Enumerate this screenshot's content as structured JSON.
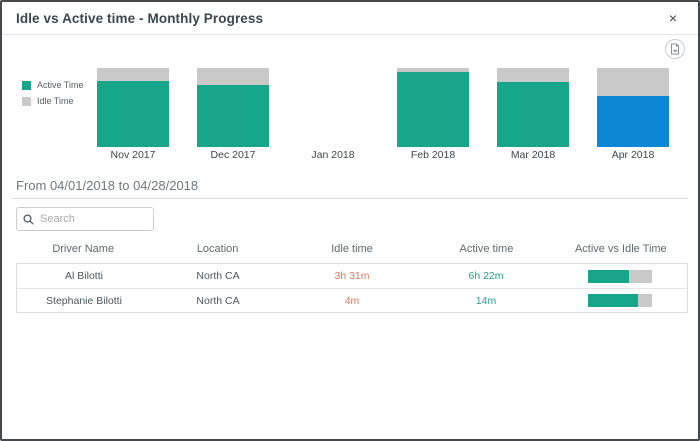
{
  "dialog": {
    "title": "Idle vs Active time - Monthly Progress",
    "close_glyph": "×"
  },
  "toolbar": {
    "export_button": "export-image"
  },
  "legend": [
    {
      "label": "Active Time",
      "color": "#17a689"
    },
    {
      "label": "Idle Time",
      "color": "#c9c9c9"
    }
  ],
  "chart_data": {
    "type": "bar",
    "stacked": true,
    "normalized_percent": true,
    "categories": [
      "Nov 2017",
      "Dec 2017",
      "Jan 2018",
      "Feb 2018",
      "Mar 2018",
      "Apr 2018"
    ],
    "series": [
      {
        "name": "Active Time",
        "color": "#17a689",
        "values": [
          84,
          79,
          null,
          95,
          82,
          65
        ]
      },
      {
        "name": "Idle Time",
        "color": "#c9c9c9",
        "values": [
          16,
          21,
          null,
          5,
          18,
          35
        ]
      }
    ],
    "selected_category": "Apr 2018",
    "selected_color": "#0d87d3",
    "legend_position": "left",
    "ylim": [
      0,
      100
    ],
    "grid": false
  },
  "period": {
    "label": "From 04/01/2018 to 04/28/2018"
  },
  "search": {
    "placeholder": "Search",
    "value": ""
  },
  "table": {
    "columns": [
      "Driver Name",
      "Location",
      "Idle time",
      "Active time",
      "Active vs Idle Time"
    ],
    "rows": [
      {
        "driver": "Al Bilotti",
        "location": "North CA",
        "idle_time": "3h 31m",
        "active_time": "6h 22m",
        "active_pct": 64
      },
      {
        "driver": "Stephanie Bilotti",
        "location": "North CA",
        "idle_time": "4m",
        "active_time": "14m",
        "active_pct": 78
      }
    ],
    "bar_colors": {
      "active": "#17a689",
      "idle": "#c9c9c9"
    }
  },
  "colors": {
    "active_teal": "#17a689",
    "idle_gray": "#c9c9c9",
    "selected_blue": "#0d87d3",
    "idle_text_orange": "#e0795c",
    "active_text_teal": "#26a28f"
  }
}
